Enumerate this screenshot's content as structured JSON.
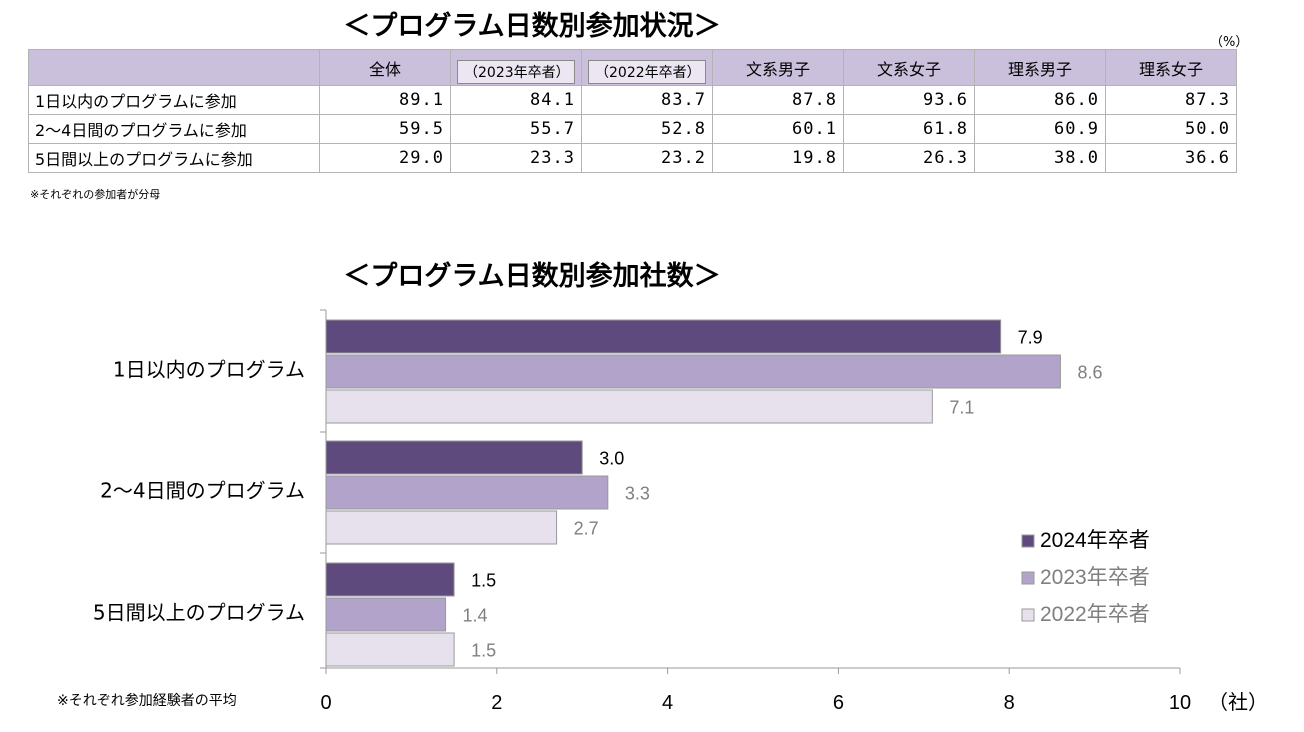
{
  "table_section": {
    "title": "＜プログラム日数別参加状況＞",
    "unit": "（%）",
    "header": {
      "all": "全体",
      "y2023": "（2023年卒者）",
      "y2022": "（2022年卒者）",
      "hum_male": "文系男子",
      "hum_female": "文系女子",
      "sci_male": "理系男子",
      "sci_female": "理系女子"
    },
    "rows": [
      {
        "label": "1日以内のプログラムに参加",
        "values": [
          "89.1",
          "84.1",
          "83.7",
          "87.8",
          "93.6",
          "86.0",
          "87.3"
        ]
      },
      {
        "label": "2～4日間のプログラムに参加",
        "values": [
          "59.5",
          "55.7",
          "52.8",
          "60.1",
          "61.8",
          "60.9",
          "50.0"
        ]
      },
      {
        "label": "5日間以上のプログラムに参加",
        "values": [
          "29.0",
          "23.3",
          "23.2",
          "19.8",
          "26.3",
          "38.0",
          "36.6"
        ]
      }
    ],
    "note": "※それぞれの参加者が分母"
  },
  "chart_section": {
    "title": "＜プログラム日数別参加社数＞",
    "note": "※それぞれ参加経験者の平均",
    "unit_label": "（社）"
  },
  "colors": {
    "series2024": "#5e4a7d",
    "series2023": "#b1a3c9",
    "series2022": "#e6e1ed",
    "header_bg": "#cbc0dc",
    "label_gray": "#7f7f7f"
  },
  "chart_data": {
    "type": "bar",
    "orientation": "horizontal",
    "categories": [
      "1日以内のプログラム",
      "2～4日間のプログラム",
      "5日間以上のプログラム"
    ],
    "series": [
      {
        "name": "2024年卒者",
        "values": [
          7.9,
          3.0,
          1.5
        ]
      },
      {
        "name": "2023年卒者",
        "values": [
          8.6,
          3.3,
          1.4
        ]
      },
      {
        "name": "2022年卒者",
        "values": [
          7.1,
          2.7,
          1.5
        ]
      }
    ],
    "xlim": [
      0,
      10
    ],
    "xticks": [
      "0",
      "2",
      "4",
      "6",
      "8",
      "10"
    ],
    "legend_position": "bottom-right",
    "grid": false
  }
}
